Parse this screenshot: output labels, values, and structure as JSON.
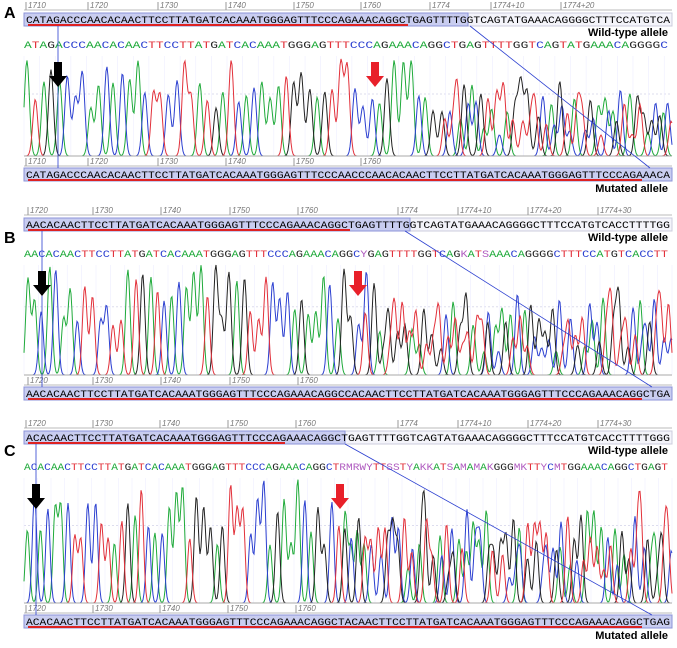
{
  "panels": [
    {
      "label": "A",
      "ruler_top": [
        "1710",
        "1720",
        "1730",
        "1740",
        "1750",
        "1760",
        "1774",
        "1774+10",
        "1774+20"
      ],
      "wild_type_sequence": "CATAGACCCAACACAACTTCCTTATGATCACAAATGGGAGTTTCCCAGAAACAGGCTGAGTTTTGGTCAGTATGAAACAGGGGCTTTCCATGTCA",
      "wild_type_label": "Wild-type allele",
      "called_sequence": "ATAGACCCAACACAACTTCCTTATGATCACAAATGGGAGTTTCCCAGAAACAGGCTGAGTTTTGGTCAGTATGAAACAGGGGC",
      "ruler_bottom": [
        "1710",
        "1720",
        "1730",
        "1740",
        "1750",
        "1760"
      ],
      "mutated_sequence": "CATAGACCCAACACAACTTCCTTATGATCACAAATGGGAGTTTCCCAACCCAACACAACTTCCTTATGATCACAAATGGGAGTTTCCCAGAAACA",
      "mutated_label": "Mutated allele"
    },
    {
      "label": "B",
      "ruler_top": [
        "1720",
        "1730",
        "1740",
        "1750",
        "1760",
        "1774",
        "1774+10",
        "1774+20",
        "1774+30"
      ],
      "wild_type_sequence": "AACACAACTTCCTTATGATCACAAATGGGAGTTTCCCAGAAACAGGCTGAGTTTTGGTCAGTATGAAACAGGGGCTTTCCATGTCACCTTTTGG",
      "wild_type_label": "Wild-type allele",
      "called_sequence": "AACACAACTTCCTTATGATCACAAATGGGAGTTTCCCAGAAACAGGCYGAGTTTTGGTCAGKATSAAACAGGGGCTTTCCATGTCACCTT",
      "ruler_bottom": [
        "1720",
        "1730",
        "1740",
        "1750",
        "1760"
      ],
      "mutated_sequence": "AACACAACTTCCTTATGATCACAAATGGGAGTTTCCCAGAAACAGGCCACAACTTCCTTATGATCACAAATGGGAGTTTCCCAGAAACAGGCTGA"
    },
    {
      "label": "C",
      "ruler_top": [
        "1720",
        "1730",
        "1740",
        "1750",
        "1760",
        "1774",
        "1774+10",
        "1774+20",
        "1774+30"
      ],
      "wild_type_sequence": "ACACAACTTCCTTATGATCACAAATGGGAGTTTCCCAGAAACAGGCTGAGTTTTGGTCAGTATGAAACAGGGGCTTTCCATGTCACCTTTTGGG",
      "wild_type_label": "Wild-type allele",
      "called_sequence": "ACACAACTTCCTTATGATCACAAATGGGAGTTTCCCAGAAACAGGCTRMRWYTTSSTYAKKATSAMAMAKGGGMKTTYCMTGGAAACAGGCTGAGT",
      "ruler_bottom": [
        "1720",
        "1730",
        "1740",
        "1750",
        "1760"
      ],
      "mutated_sequence": "ACACAACTTCCTTATGATCACAAATGGGAGTTTCCCAGAAACAGGCTACAACTTCCTTATGATCACAAATGGGAGTTTCCCAGAAACAGGCTGAG",
      "mutated_label": "Mutated allele"
    }
  ]
}
